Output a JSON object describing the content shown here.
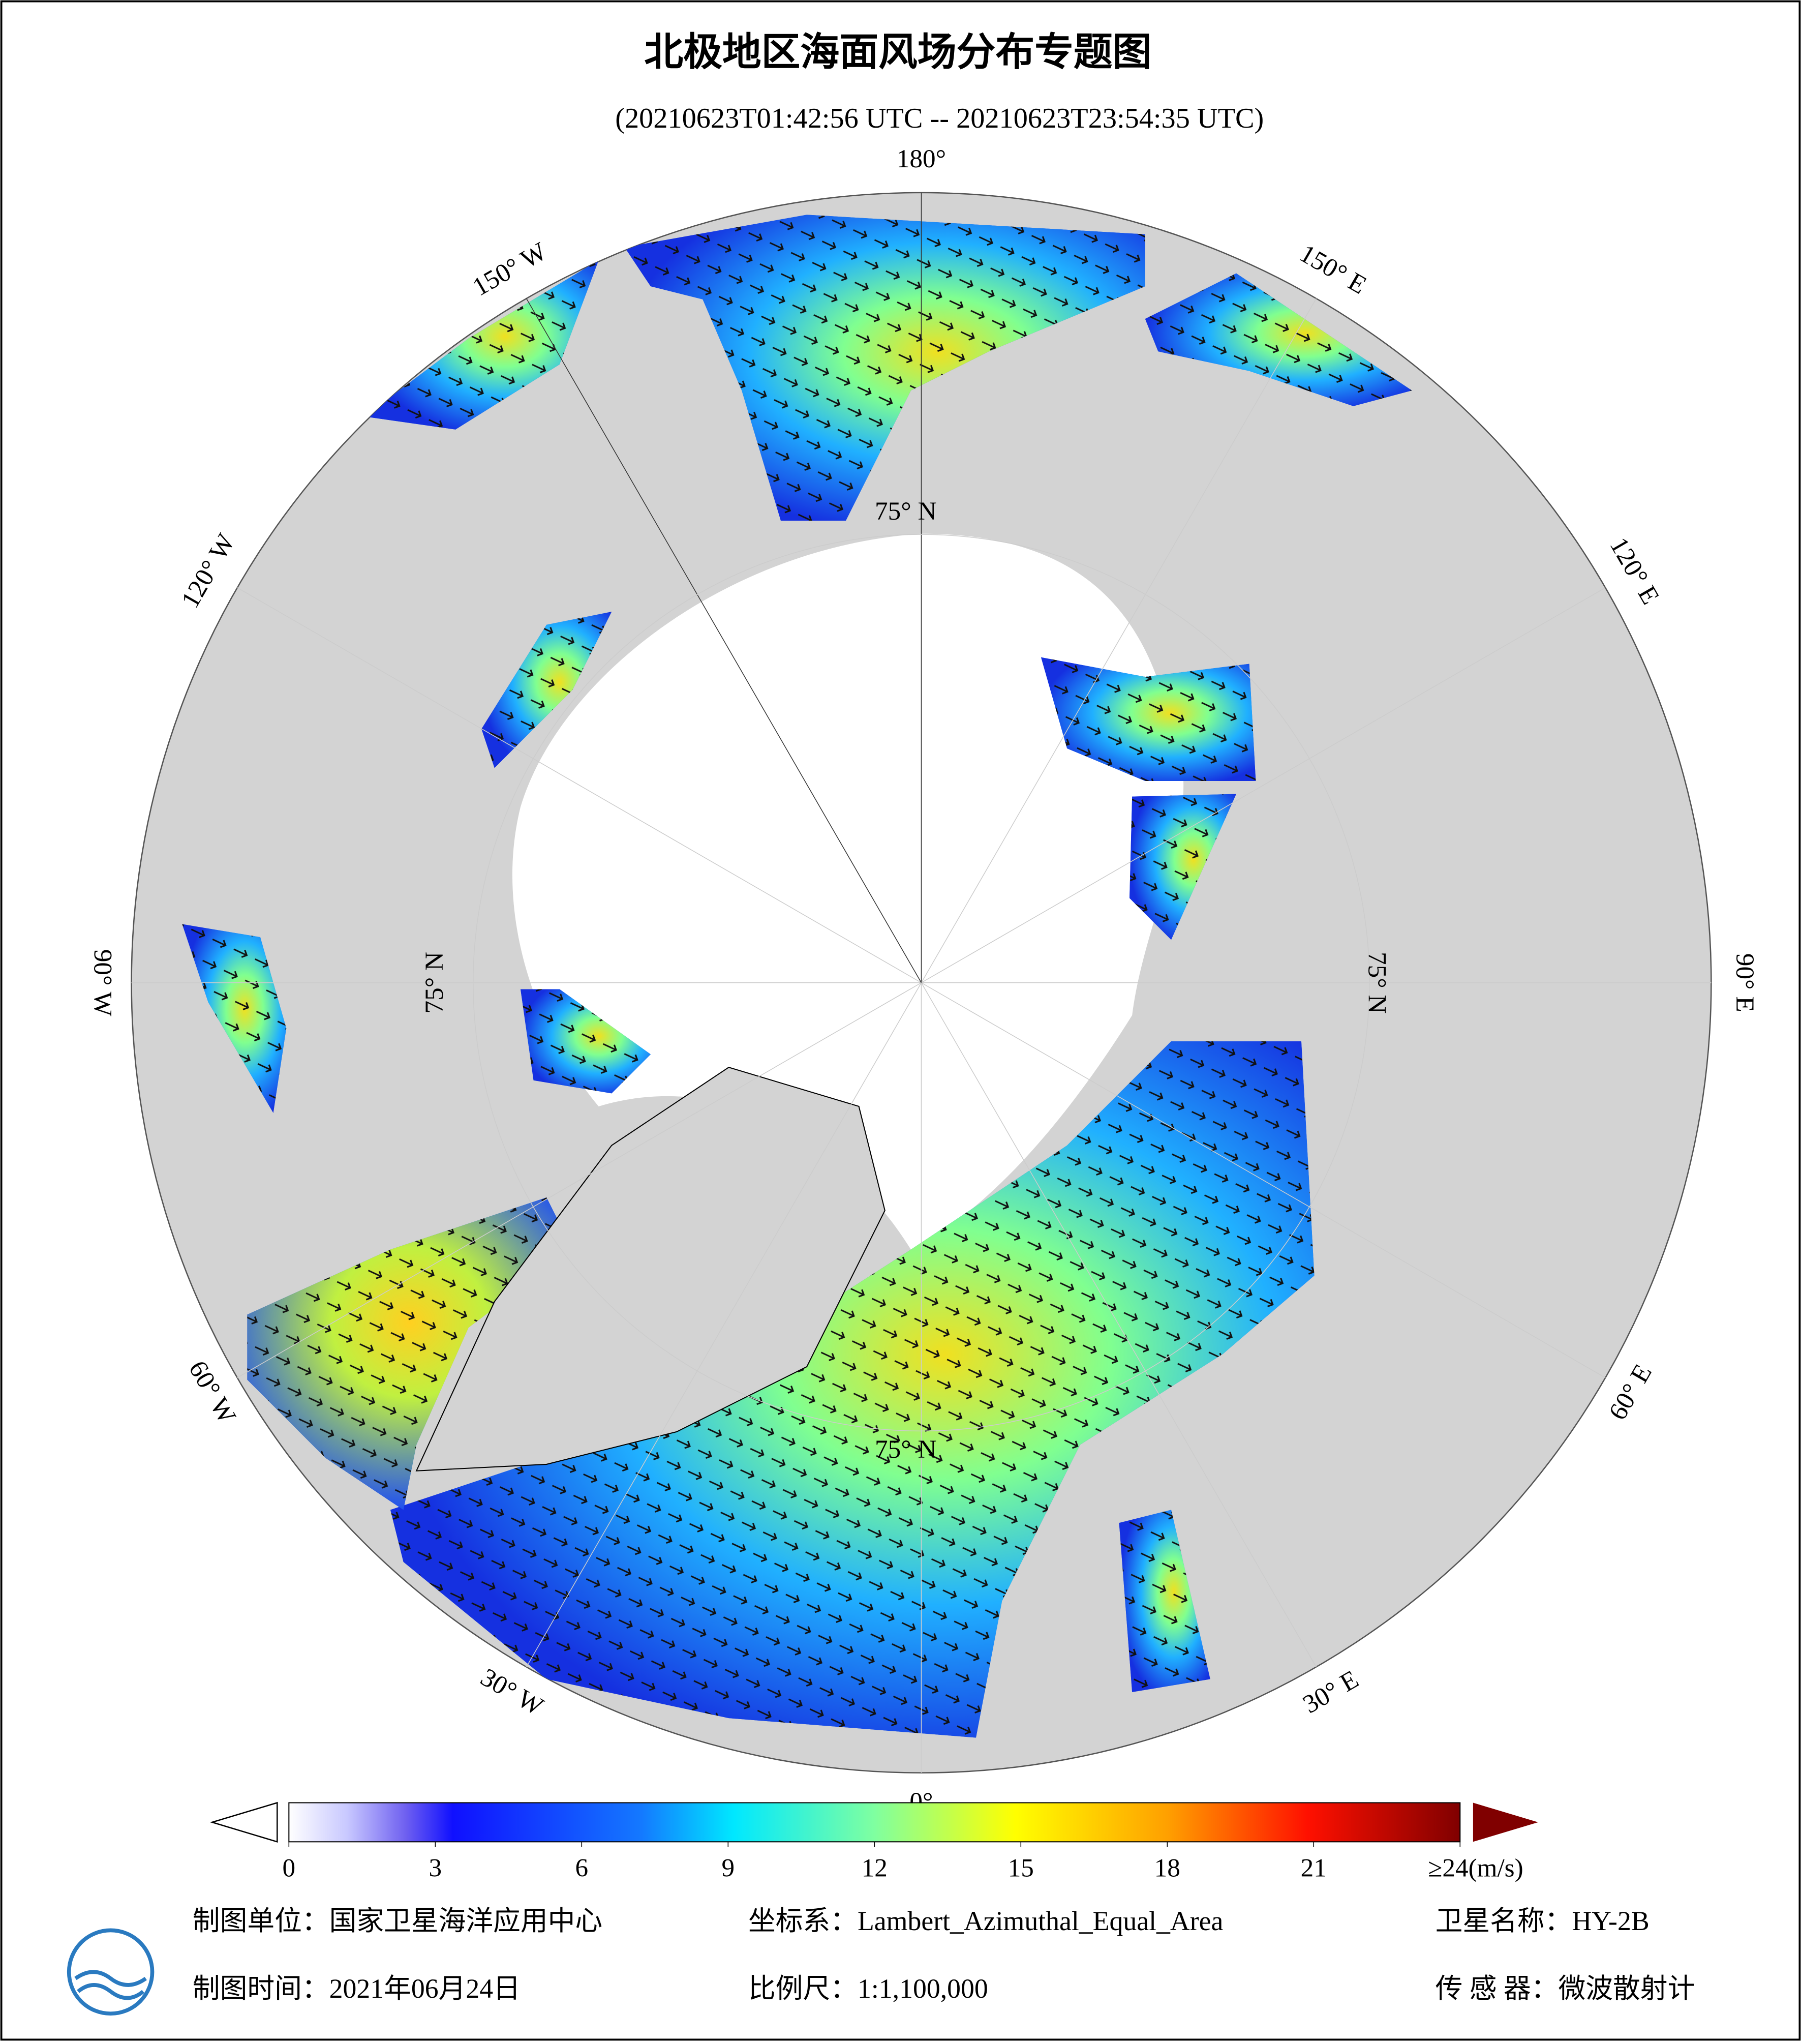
{
  "title": "北极地区海面风场分布专题图",
  "subtitle": "(20210623T01:42:56 UTC -- 20210623T23:54:35 UTC)",
  "map": {
    "lon_ticks": [
      {
        "value": 180,
        "label": "180°"
      },
      {
        "value": 150,
        "label": "150° E"
      },
      {
        "value": 120,
        "label": "120° E"
      },
      {
        "value": 90,
        "label": "90° E"
      },
      {
        "value": 60,
        "label": "60° E"
      },
      {
        "value": 30,
        "label": "30° E"
      },
      {
        "value": 0,
        "label": "0°"
      },
      {
        "value": -30,
        "label": "30° W"
      },
      {
        "value": -60,
        "label": "60° W"
      },
      {
        "value": -90,
        "label": "90° W"
      },
      {
        "value": -120,
        "label": "120° W"
      },
      {
        "value": -150,
        "label": "150° W"
      }
    ],
    "lat_ticks": [
      {
        "value": 75,
        "label": "75° N"
      },
      {
        "value": 75,
        "label": "75° N"
      },
      {
        "value": 75,
        "label": "75° N"
      },
      {
        "value": 75,
        "label": "75° N"
      }
    ]
  },
  "colorbar": {
    "lim": [
      0,
      24
    ],
    "ticks": [
      0,
      3,
      6,
      9,
      12,
      15,
      18,
      21,
      {
        "value": 24,
        "label": "≥24(m/s)"
      }
    ]
  },
  "footer": {
    "producer": "制图单位：国家卫星海洋应用中心",
    "projection": "坐标系：Lambert_Azimuthal_Equal_Area",
    "satellite": "卫星名称：HY-2B",
    "date": "制图时间：2021年06月24日",
    "scale": "比例尺：1:1,100,000",
    "sensor": "传 感 器：微波散射计"
  }
}
